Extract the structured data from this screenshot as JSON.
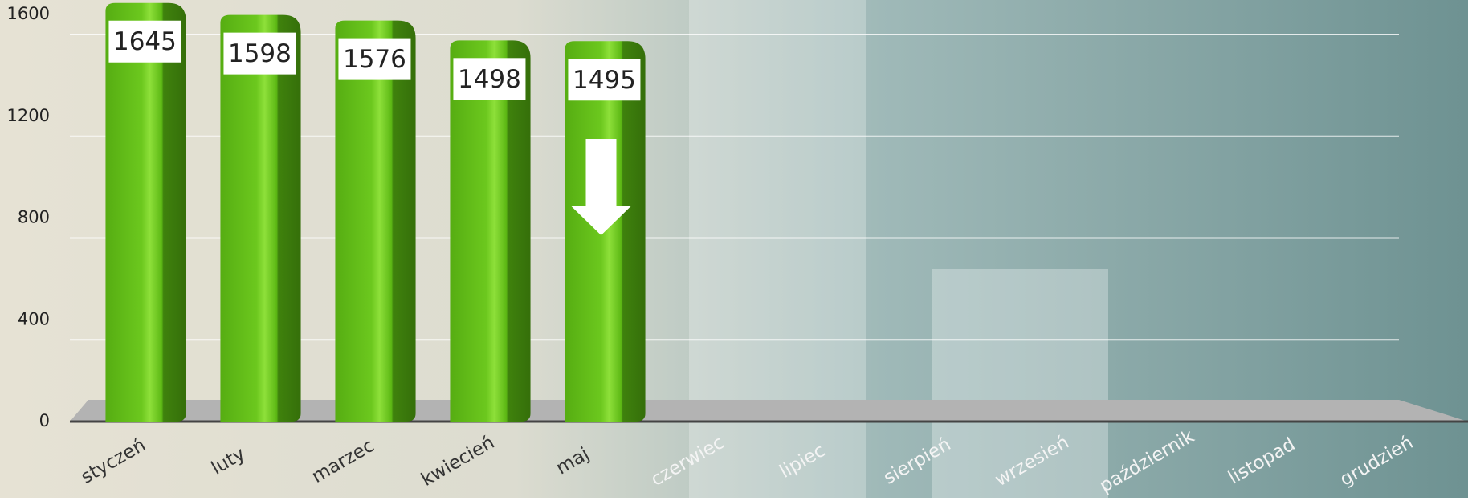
{
  "chart_data": {
    "type": "bar",
    "categories": [
      "styczeń",
      "luty",
      "marzec",
      "kwiecień",
      "maj",
      "czerwiec",
      "lipiec",
      "sierpień",
      "wrzesień",
      "październik",
      "listopad",
      "grudzień"
    ],
    "values": [
      1645,
      1598,
      1576,
      1498,
      1495,
      null,
      null,
      null,
      null,
      null,
      null,
      null
    ],
    "color": "#5cb814",
    "ylim": [
      0,
      1600
    ],
    "yticks": [
      0,
      400,
      800,
      1200,
      1600
    ],
    "grid": true
  }
}
